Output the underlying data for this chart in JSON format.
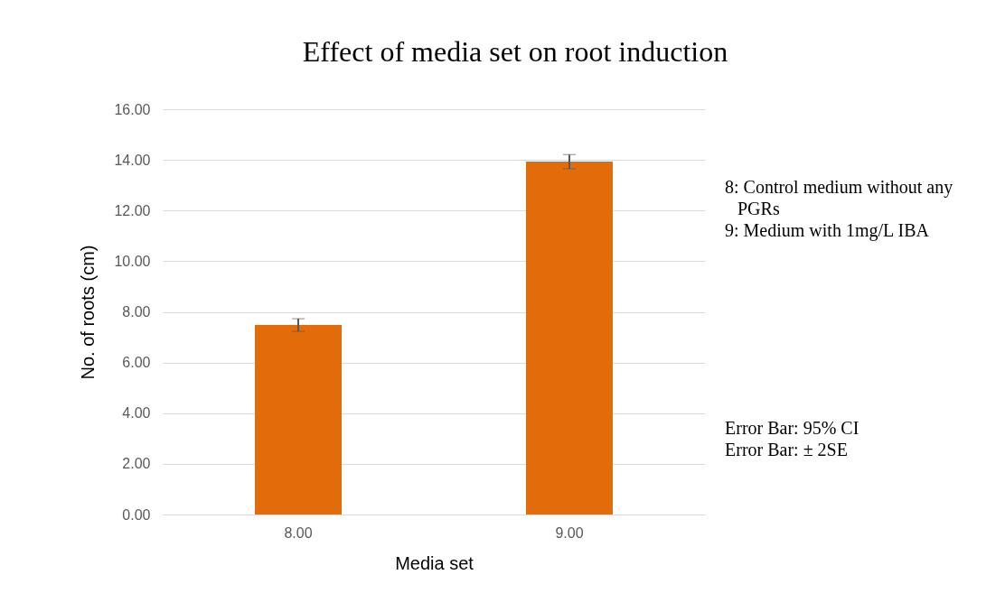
{
  "chart_data": {
    "type": "bar",
    "title": "Effect of media set on root induction",
    "xlabel": "Media set",
    "ylabel": "No. of roots (cm)",
    "categories": [
      "8.00",
      "9.00"
    ],
    "values": [
      7.48,
      13.93
    ],
    "errors": [
      0.25,
      0.28
    ],
    "color": "#e36c0a",
    "ylim": [
      0,
      16
    ],
    "yticks": [
      {
        "value": 0,
        "label": "0.00"
      },
      {
        "value": 2,
        "label": "2.00"
      },
      {
        "value": 4,
        "label": "4.00"
      },
      {
        "value": 6,
        "label": "6.00"
      },
      {
        "value": 8,
        "label": "8.00"
      },
      {
        "value": 10,
        "label": "10.00"
      },
      {
        "value": 12,
        "label": "12.00"
      },
      {
        "value": 14,
        "label": "14.00"
      },
      {
        "value": 16,
        "label": "16.00"
      }
    ],
    "grid": "y",
    "annotations": [
      "8: Control medium without any PGRs",
      "9: Medium with 1mg/L IBA",
      "Error Bar: 95% CI",
      "Error Bar: ± 2SE"
    ]
  }
}
